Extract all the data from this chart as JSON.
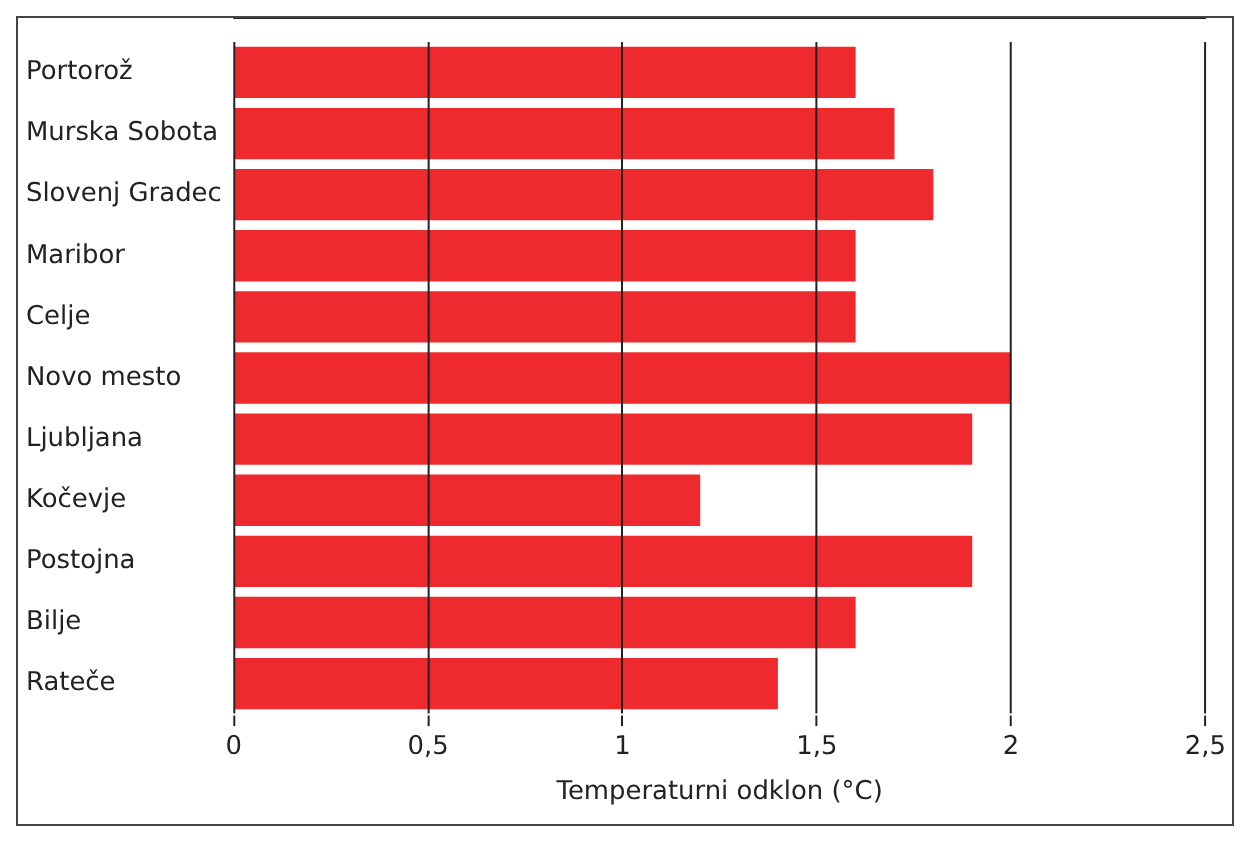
{
  "chart_data": {
    "type": "bar",
    "orientation": "horizontal",
    "xlabel": "Temperaturni odklon (°C)",
    "categories": [
      "Portorož",
      "Murska Sobota",
      "Slovenj Gradec",
      "Maribor",
      "Celje",
      "Novo mesto",
      "Ljubljana",
      "Kočevje",
      "Postojna",
      "Bilje",
      "Rateče"
    ],
    "values": [
      1.6,
      1.7,
      1.8,
      1.6,
      1.6,
      2.0,
      1.9,
      1.2,
      1.9,
      1.6,
      1.4
    ],
    "color": "#ee2a2f",
    "xlim": [
      0,
      2.5
    ],
    "xticks": [
      0,
      {
        "value": 0.5,
        "label": "0,5"
      },
      1,
      {
        "value": 1.5,
        "label": "1,5"
      },
      2,
      {
        "value": 2.5,
        "label": "2,5"
      }
    ],
    "grid": "x"
  }
}
